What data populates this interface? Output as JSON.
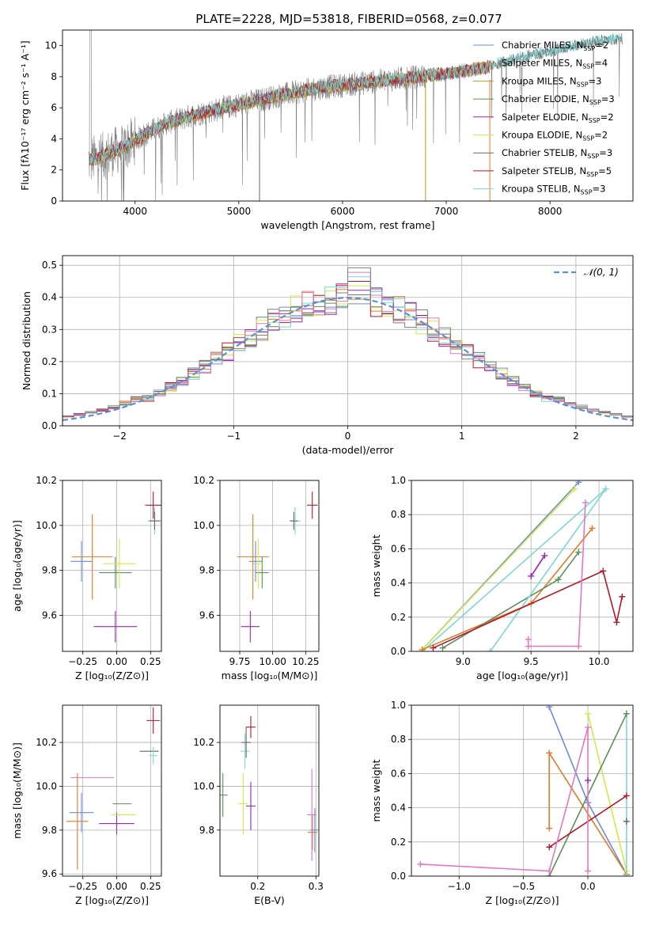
{
  "figure_title": "PLATE=2228, MJD=53818, FIBERID=0568, z=0.077",
  "colors": {
    "Chabrier MILES": "#6b8dd6",
    "Salpeter MILES": "#e07a26",
    "Kroupa MILES": "#c79a1c",
    "Chabrier ELODIE": "#5b8f5b",
    "Salpeter ELODIE": "#9c27b0",
    "Kroupa ELODIE": "#d4e84a",
    "Chabrier STELIB": "#666666",
    "Salpeter STELIB": "#b2182b",
    "Kroupa STELIB": "#7fd6d6",
    "gaussian": "#5b8fd6",
    "hist_extra": [
      "#e377c2",
      "#7f7f7f"
    ]
  },
  "chart_data": [
    {
      "type": "line",
      "id": "spectrum",
      "xlabel": "wavelength [Angstrom, rest frame]",
      "ylabel": "Flux [fλ10⁻¹⁷ erg cm⁻² s⁻¹ A⁻¹]",
      "xlim": [
        3300,
        8800
      ],
      "ylim": [
        0,
        11
      ],
      "xticks": [
        4000,
        5000,
        6000,
        7000,
        8000
      ],
      "yticks": [
        0,
        2,
        4,
        6,
        8,
        10
      ],
      "legend": [
        {
          "label": "Chabrier MILES, N",
          "sub": "SSP",
          "tail": "=2",
          "key": "Chabrier MILES"
        },
        {
          "label": "Salpeter MILES, N",
          "sub": "SSP",
          "tail": "=4",
          "key": "Salpeter MILES"
        },
        {
          "label": "Kroupa MILES, N",
          "sub": "SSP",
          "tail": "=3",
          "key": "Kroupa MILES"
        },
        {
          "label": "Chabrier ELODIE, N",
          "sub": "SSP",
          "tail": "=3",
          "key": "Chabrier ELODIE"
        },
        {
          "label": "Salpeter ELODIE, N",
          "sub": "SSP",
          "tail": "=2",
          "key": "Salpeter ELODIE"
        },
        {
          "label": "Kroupa ELODIE, N",
          "sub": "SSP",
          "tail": "=2",
          "key": "Kroupa ELODIE"
        },
        {
          "label": "Chabrier STELIB, N",
          "sub": "SSP",
          "tail": "=3",
          "key": "Chabrier STELIB"
        },
        {
          "label": "Salpeter STELIB, N",
          "sub": "SSP",
          "tail": "=5",
          "key": "Salpeter STELIB"
        },
        {
          "label": "Kroupa STELIB, N",
          "sub": "SSP",
          "tail": "=3",
          "key": "Kroupa STELIB"
        }
      ],
      "continuum_x": [
        3550,
        3700,
        3900,
        4100,
        4300,
        4600,
        5000,
        5400,
        5800,
        6200,
        6600,
        7000,
        7400,
        7800,
        8200,
        8600
      ],
      "continuum_y": [
        2.6,
        2.9,
        3.5,
        4.3,
        5.0,
        5.6,
        6.2,
        6.8,
        7.3,
        7.6,
        7.9,
        8.2,
        8.6,
        9.3,
        9.9,
        10.4
      ]
    },
    {
      "type": "line",
      "id": "residual_hist",
      "xlabel": "(data-model)/error",
      "ylabel": "Normed distribution",
      "xlim": [
        -2.5,
        2.5
      ],
      "ylim": [
        0,
        0.53
      ],
      "xticks": [
        -2,
        -1,
        0,
        1,
        2
      ],
      "yticks": [
        0.0,
        0.1,
        0.2,
        0.3,
        0.4,
        0.5
      ],
      "legend": "𝒩(0, 1)"
    },
    {
      "type": "scatter",
      "id": "age_vs_Z",
      "xlabel": "Z [log₁₀(Z/Z⊙)]",
      "ylabel": "age  [log₁₀(age/yr)]",
      "xlim": [
        -0.4,
        0.33
      ],
      "ylim": [
        9.44,
        10.2
      ],
      "xticks": [
        -0.25,
        0.0,
        0.25
      ],
      "yticks": [
        9.6,
        9.8,
        10.0,
        10.2
      ],
      "points": [
        {
          "key": "Chabrier MILES",
          "x": -0.26,
          "xerr": 0.08,
          "y": 9.84,
          "yerr": 0.09
        },
        {
          "key": "Salpeter MILES",
          "x": -0.18,
          "xerr": 0.15,
          "y": 9.86,
          "yerr": 0.19
        },
        {
          "key": "Chabrier ELODIE",
          "x": -0.01,
          "xerr": 0.12,
          "y": 9.79,
          "yerr": 0.07
        },
        {
          "key": "Salpeter ELODIE",
          "x": -0.01,
          "xerr": 0.16,
          "y": 9.55,
          "yerr": 0.07
        },
        {
          "key": "Kroupa ELODIE",
          "x": 0.02,
          "xerr": 0.12,
          "y": 9.83,
          "yerr": 0.11
        },
        {
          "key": "Salpeter STELIB",
          "x": 0.27,
          "xerr": 0.06,
          "y": 10.09,
          "yerr": 0.06
        },
        {
          "key": "Kroupa STELIB",
          "x": 0.28,
          "xerr": 0.05,
          "y": 10.02,
          "yerr": 0.06
        },
        {
          "key": "Chabrier STELIB",
          "x": 0.28,
          "xerr": 0.04,
          "y": 10.02,
          "yerr": 0.04
        }
      ]
    },
    {
      "type": "scatter",
      "id": "age_vs_mass",
      "xlabel": "mass [log₁₀(M/M⊙)]",
      "ylabel": "",
      "xlim": [
        9.6,
        10.35
      ],
      "ylim": [
        9.44,
        10.2
      ],
      "xticks": [
        9.75,
        10.0,
        10.25
      ],
      "yticks": [
        9.6,
        9.8,
        10.0,
        10.2
      ],
      "points": [
        {
          "key": "Chabrier MILES",
          "x": 9.87,
          "xerr": 0.05,
          "y": 9.84,
          "yerr": 0.09
        },
        {
          "key": "Salpeter MILES",
          "x": 9.85,
          "xerr": 0.12,
          "y": 9.86,
          "yerr": 0.19
        },
        {
          "key": "Chabrier ELODIE",
          "x": 9.92,
          "xerr": 0.05,
          "y": 9.79,
          "yerr": 0.07
        },
        {
          "key": "Salpeter ELODIE",
          "x": 9.83,
          "xerr": 0.07,
          "y": 9.55,
          "yerr": 0.07
        },
        {
          "key": "Kroupa ELODIE",
          "x": 9.89,
          "xerr": 0.0,
          "y": 9.83,
          "yerr": 0.11
        },
        {
          "key": "Salpeter STELIB",
          "x": 10.3,
          "xerr": 0.04,
          "y": 10.09,
          "yerr": 0.06
        },
        {
          "key": "Kroupa STELIB",
          "x": 10.17,
          "xerr": 0.04,
          "y": 10.02,
          "yerr": 0.06
        },
        {
          "key": "Chabrier STELIB",
          "x": 10.16,
          "xerr": 0.03,
          "y": 10.02,
          "yerr": 0.04
        }
      ]
    },
    {
      "type": "line",
      "id": "massweight_vs_age",
      "xlabel": "age  [log₁₀(age/yr)]",
      "ylabel": "mass weight",
      "xlim": [
        8.62,
        10.25
      ],
      "ylim": [
        0,
        1.0
      ],
      "xticks": [
        9.0,
        9.5,
        10.0
      ],
      "yticks": [
        0.0,
        0.2,
        0.4,
        0.6,
        0.8,
        1.0
      ],
      "series": [
        {
          "key": "Chabrier MILES",
          "x": [
            8.7,
            9.85
          ],
          "y": [
            0.01,
            0.99
          ]
        },
        {
          "key": "Kroupa ELODIE",
          "x": [
            8.7,
            9.82
          ],
          "y": [
            0.01,
            0.95
          ]
        },
        {
          "key": "Kroupa STELIB",
          "x": [
            8.7,
            10.05
          ],
          "y": [
            0.0,
            0.95
          ]
        },
        {
          "key": "Salpeter MILES",
          "x": [
            8.7,
            9.5,
            9.95
          ],
          "y": [
            0.01,
            0.28,
            0.72
          ]
        },
        {
          "key": "Chabrier ELODIE",
          "x": [
            8.85,
            9.7,
            9.85
          ],
          "y": [
            0.02,
            0.42,
            0.58
          ]
        },
        {
          "key": "Salpeter ELODIE",
          "x": [
            9.5,
            9.6
          ],
          "y": [
            0.44,
            0.56
          ]
        },
        {
          "key": "Hist",
          "x": [
            9.2,
            10.05
          ],
          "y": [
            0.0,
            0.95
          ]
        },
        {
          "key": "Salpeter STELIB",
          "x": [
            8.78,
            10.03,
            10.13,
            10.17
          ],
          "y": [
            0.02,
            0.47,
            0.17,
            0.32
          ]
        },
        {
          "key": "Pink",
          "x": [
            9.48,
            9.48,
            9.85,
            9.9
          ],
          "y": [
            0.07,
            0.03,
            0.03,
            0.87
          ]
        }
      ]
    },
    {
      "type": "scatter",
      "id": "mass_vs_Z",
      "xlabel": "Z [log₁₀(Z/Z⊙)]",
      "ylabel": "mass [log₁₀(M/M⊙)]",
      "xlim": [
        -0.4,
        0.33
      ],
      "ylim": [
        9.59,
        10.37
      ],
      "xticks": [
        -0.25,
        0.0,
        0.25
      ],
      "yticks": [
        9.6,
        9.8,
        10.0,
        10.2
      ],
      "points": [
        {
          "key": "Chabrier MILES",
          "x": -0.26,
          "xerr": 0.09,
          "y": 9.88,
          "yerr": 0.09
        },
        {
          "key": "Salpeter MILES",
          "x": -0.29,
          "xerr": 0.08,
          "y": 9.84,
          "yerr": 0.22
        },
        {
          "key": "Pink",
          "x": -0.18,
          "xerr": 0.16,
          "y": 10.04,
          "yerr": 0.0
        },
        {
          "key": "Chabrier ELODIE",
          "x": 0.04,
          "xerr": 0.07,
          "y": 9.92,
          "yerr": 0.0
        },
        {
          "key": "Salpeter ELODIE",
          "x": 0.0,
          "xerr": 0.13,
          "y": 9.83,
          "yerr": 0.05
        },
        {
          "key": "Kroupa ELODIE",
          "x": 0.05,
          "xerr": 0.09,
          "y": 9.87,
          "yerr": 0.0
        },
        {
          "key": "Salpeter STELIB",
          "x": 0.27,
          "xerr": 0.05,
          "y": 10.3,
          "yerr": 0.06
        },
        {
          "key": "Chabrier STELIB",
          "x": 0.24,
          "xerr": 0.07,
          "y": 10.16,
          "yerr": 0.0
        },
        {
          "key": "Kroupa STELIB",
          "x": 0.27,
          "xerr": 0.03,
          "y": 10.14,
          "yerr": 0.04
        }
      ]
    },
    {
      "type": "scatter",
      "id": "mass_vs_ebv",
      "xlabel": "E(B-V)",
      "ylabel": "",
      "xlim": [
        0.135,
        0.305
      ],
      "ylim": [
        9.59,
        10.37
      ],
      "xticks": [
        0.2,
        0.3
      ],
      "yticks": [
        9.8,
        10.0,
        10.2
      ],
      "points": [
        {
          "key": "Chabrier ELODIE",
          "x": 0.14,
          "y": 9.96,
          "yerr": 0.1
        },
        {
          "key": "Kroupa ELODIE",
          "x": 0.175,
          "y": 9.92,
          "yerr": 0.14
        },
        {
          "key": "Kroupa STELIB",
          "x": 0.178,
          "y": 10.16,
          "yerr": 0.08
        },
        {
          "key": "Chabrier STELIB",
          "x": 0.18,
          "y": 10.2,
          "yerr": 0.07
        },
        {
          "key": "Salpeter STELIB",
          "x": 0.188,
          "y": 10.27,
          "yerr": 0.05
        },
        {
          "key": "Salpeter ELODIE",
          "x": 0.188,
          "y": 9.91,
          "yerr": 0.11
        },
        {
          "key": "Salpeter MILES",
          "x": 0.294,
          "y": 9.79,
          "yerr": 0.08
        },
        {
          "key": "Pink",
          "x": 0.293,
          "y": 9.87,
          "yerr": 0.21
        },
        {
          "key": "Chabrier MILES",
          "x": 0.298,
          "y": 9.8,
          "yerr": 0.1
        }
      ]
    },
    {
      "type": "line",
      "id": "massweight_vs_Z",
      "xlabel": "Z [log₁₀(Z/Z⊙)]",
      "ylabel": "mass weight",
      "xlim": [
        -1.37,
        0.35
      ],
      "ylim": [
        0,
        1.0
      ],
      "xticks": [
        -1.0,
        -0.5,
        0.0
      ],
      "yticks": [
        0.0,
        0.2,
        0.4,
        0.6,
        0.8,
        1.0
      ],
      "series": [
        {
          "key": "Chabrier MILES",
          "x": [
            -0.3,
            0.0,
            0.3
          ],
          "y": [
            0.99,
            0.43,
            0.01
          ]
        },
        {
          "key": "Salpeter MILES",
          "x": [
            -0.3,
            -0.3,
            0.3
          ],
          "y": [
            0.28,
            0.72,
            0.01
          ]
        },
        {
          "key": "Kroupa ELODIE",
          "x": [
            0.0,
            0.3
          ],
          "y": [
            0.95,
            0.03
          ]
        },
        {
          "key": "Kroupa STELIB",
          "x": [
            0.3,
            0.3
          ],
          "y": [
            0.0,
            0.95
          ]
        },
        {
          "key": "Chabrier ELODIE",
          "x": [
            -0.3,
            0.3
          ],
          "y": [
            0.0,
            0.95
          ]
        },
        {
          "key": "Salpeter STELIB",
          "x": [
            -0.3,
            0.3
          ],
          "y": [
            0.17,
            0.47
          ]
        },
        {
          "key": "Pink",
          "x": [
            -1.3,
            -0.3,
            0.0,
            0.0
          ],
          "y": [
            0.07,
            0.03,
            0.87,
            0.03
          ]
        },
        {
          "key": "Salpeter ELODIE",
          "x": [
            0.0
          ],
          "y": [
            0.56
          ]
        },
        {
          "key": "Chabrier STELIB",
          "x": [
            0.3
          ],
          "y": [
            0.32
          ]
        }
      ]
    }
  ]
}
